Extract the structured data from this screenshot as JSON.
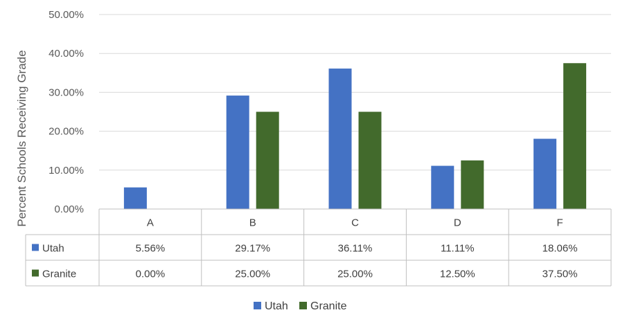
{
  "chart_data": {
    "type": "bar",
    "title": "",
    "xlabel": "",
    "ylabel": "Percent Schools Receiving Grade",
    "categories": [
      "A",
      "B",
      "C",
      "D",
      "F"
    ],
    "ylim": [
      0,
      50
    ],
    "yticks": [
      "0.00%",
      "10.00%",
      "20.00%",
      "30.00%",
      "40.00%",
      "50.00%"
    ],
    "grid": true,
    "legend": "bottom",
    "data_table": true,
    "series": [
      {
        "name": "Utah",
        "color": "#4472c4",
        "values": [
          5.56,
          29.17,
          36.11,
          11.11,
          18.06
        ],
        "labels": [
          "5.56%",
          "29.17%",
          "36.11%",
          "11.11%",
          "18.06%"
        ]
      },
      {
        "name": "Granite",
        "color": "#426a2c",
        "values": [
          0.0,
          25.0,
          25.0,
          12.5,
          37.5
        ],
        "labels": [
          "0.00%",
          "25.00%",
          "25.00%",
          "12.50%",
          "37.50%"
        ]
      }
    ]
  }
}
